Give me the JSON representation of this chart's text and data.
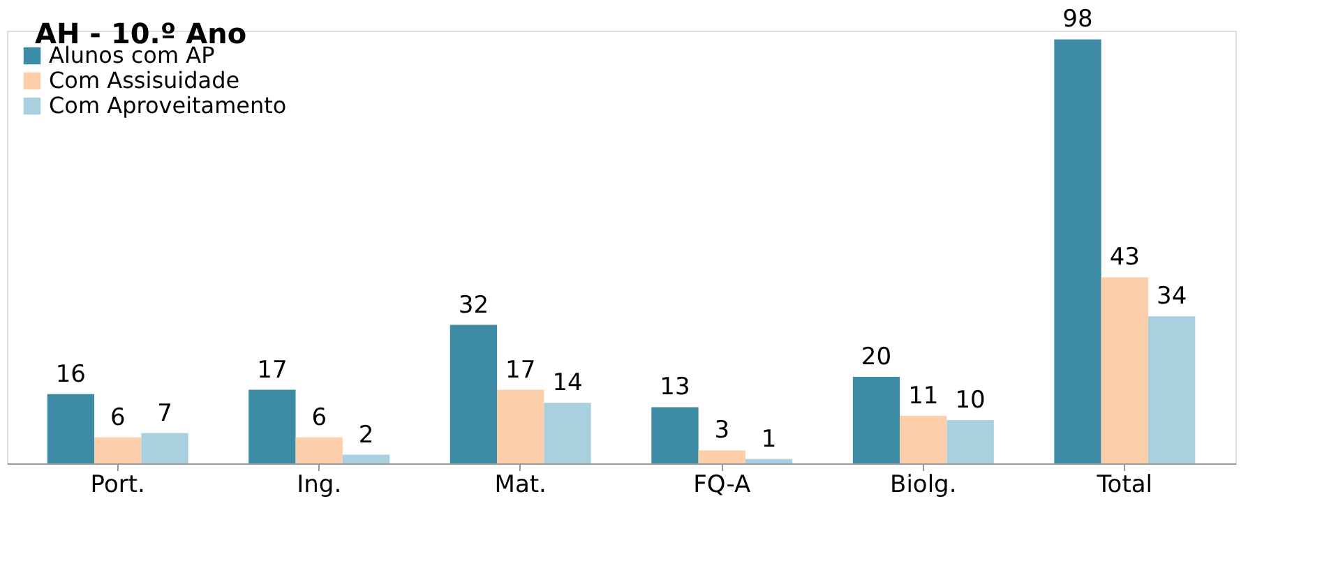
{
  "chart_data": {
    "type": "bar",
    "title": "AH - 10.º Ano",
    "categories": [
      "Port.",
      "Ing.",
      "Mat.",
      "FQ-A",
      "Biolg.",
      "Total"
    ],
    "series": [
      {
        "name": "Alunos com AP",
        "color": "#3e8ba5",
        "values": [
          16,
          17,
          32,
          13,
          20,
          98
        ]
      },
      {
        "name": "Com Assisuidade",
        "color": "#fccfaa",
        "values": [
          6,
          6,
          17,
          3,
          11,
          43
        ]
      },
      {
        "name": "Com  Aproveitamento",
        "color": "#a9d0de",
        "values": [
          7,
          2,
          14,
          1,
          10,
          34
        ]
      }
    ],
    "data_labels": true,
    "legend": "top left",
    "grid": false
  }
}
